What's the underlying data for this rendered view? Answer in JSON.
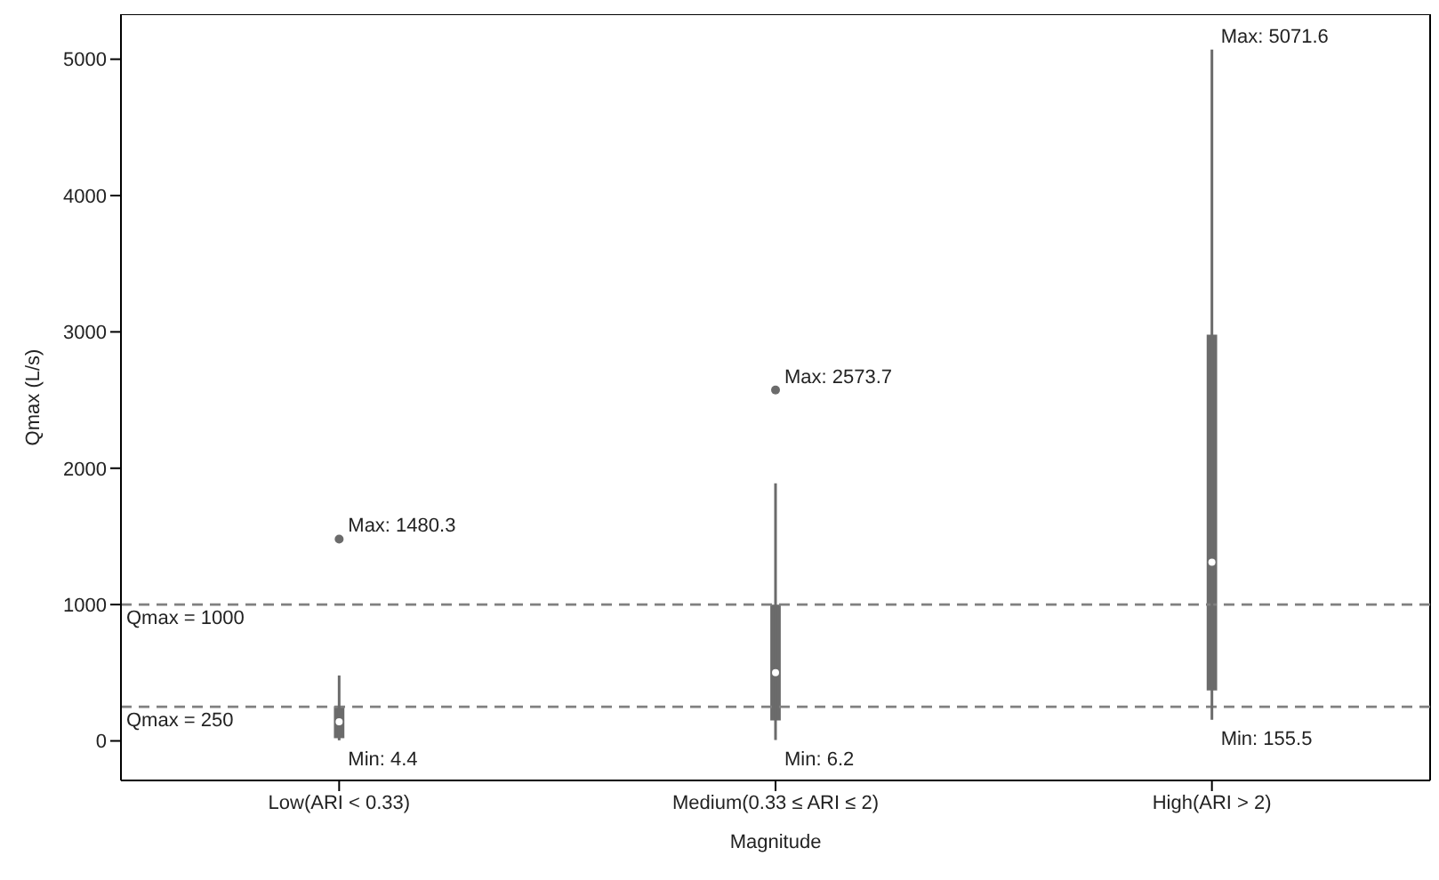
{
  "chart_data": {
    "type": "box",
    "xlabel": "Magnitude",
    "ylabel": "Qmax (L/s)",
    "categories": [
      "Low(ARI < 0.33)",
      "Medium(0.33 ≤ ARI ≤ 2)",
      "High(ARI > 2)"
    ],
    "boxes": [
      {
        "low": 4.4,
        "q1": 20,
        "median": 140,
        "q3": 255,
        "high": 480,
        "outliers": [
          1480.3
        ]
      },
      {
        "low": 6.2,
        "q1": 150,
        "median": 500,
        "q3": 1000,
        "high": 1890,
        "outliers": [
          2573.7
        ]
      },
      {
        "low": 155.5,
        "q1": 370,
        "median": 1310,
        "q3": 2980,
        "high": 5071.6
      }
    ],
    "colors": [
      "#6b6b6b",
      "#6b6b6b",
      "#6b6b6b"
    ],
    "ylim": [
      -290,
      5330
    ],
    "yticks": [
      0,
      1000,
      2000,
      3000,
      4000,
      5000
    ],
    "ref_lines": [
      {
        "axis": "y",
        "value": 1000,
        "label": "Qmax = 1000",
        "color": "#808080",
        "line_style": "dashed"
      },
      {
        "axis": "y",
        "value": 250,
        "label": "Qmax = 250",
        "color": "#808080",
        "line_style": "dashed"
      }
    ],
    "annotations": [
      "Max: 1480.3",
      "Min: 4.4",
      "Max: 2573.7",
      "Min: 6.2",
      "Max: 5071.6",
      "Min: 155.5"
    ]
  }
}
